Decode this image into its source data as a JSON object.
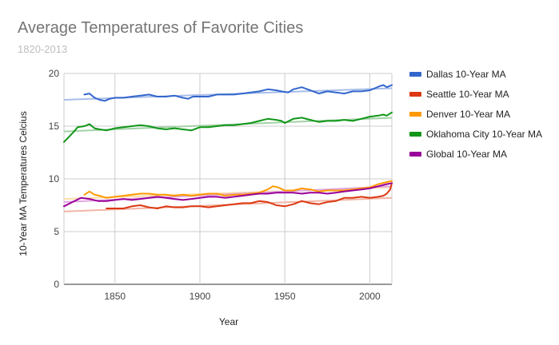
{
  "chart_data": {
    "type": "line",
    "title": "Average Temperatures of Favorite Cities",
    "subtitle": "1820-2013",
    "xlabel": "Year",
    "ylabel": "10-Year MA Temperatures Celcius",
    "xlim": [
      1820,
      2013
    ],
    "ylim": [
      0,
      20
    ],
    "xticks": [
      1850,
      1900,
      1950,
      2000
    ],
    "yticks": [
      0,
      5,
      10,
      15,
      20
    ],
    "grid": true,
    "legend_position": "right",
    "trendlines": true,
    "series": [
      {
        "name": "Dallas 10-Year MA",
        "color": "#3366cc",
        "trend_color": "#a7bde9",
        "x": [
          1832,
          1835,
          1838,
          1841,
          1844,
          1847,
          1850,
          1855,
          1860,
          1865,
          1870,
          1875,
          1880,
          1885,
          1890,
          1893,
          1896,
          1900,
          1905,
          1910,
          1915,
          1920,
          1925,
          1930,
          1935,
          1940,
          1945,
          1948,
          1952,
          1955,
          1960,
          1965,
          1970,
          1975,
          1980,
          1985,
          1990,
          1995,
          2000,
          2003,
          2006,
          2008,
          2010,
          2013
        ],
        "y": [
          18.0,
          18.1,
          17.7,
          17.5,
          17.4,
          17.6,
          17.7,
          17.7,
          17.8,
          17.9,
          18.0,
          17.8,
          17.8,
          17.9,
          17.7,
          17.6,
          17.8,
          17.8,
          17.8,
          18.0,
          18.0,
          18.0,
          18.1,
          18.2,
          18.3,
          18.5,
          18.4,
          18.3,
          18.2,
          18.5,
          18.7,
          18.4,
          18.1,
          18.3,
          18.2,
          18.1,
          18.3,
          18.3,
          18.4,
          18.6,
          18.8,
          18.9,
          18.7,
          18.9
        ],
        "trend": [
          17.5,
          18.6
        ]
      },
      {
        "name": "Seattle 10-Year MA",
        "color": "#dc3912",
        "trend_color": "#f2b5a6",
        "x": [
          1845,
          1850,
          1855,
          1860,
          1865,
          1870,
          1875,
          1880,
          1885,
          1890,
          1895,
          1900,
          1905,
          1910,
          1915,
          1920,
          1925,
          1930,
          1935,
          1940,
          1945,
          1950,
          1955,
          1960,
          1965,
          1970,
          1975,
          1980,
          1985,
          1990,
          1995,
          2000,
          2005,
          2008,
          2010,
          2012,
          2013
        ],
        "y": [
          7.2,
          7.2,
          7.2,
          7.4,
          7.5,
          7.3,
          7.2,
          7.4,
          7.3,
          7.3,
          7.4,
          7.4,
          7.3,
          7.4,
          7.5,
          7.6,
          7.7,
          7.7,
          7.9,
          7.8,
          7.5,
          7.4,
          7.6,
          7.9,
          7.7,
          7.6,
          7.8,
          7.9,
          8.2,
          8.2,
          8.3,
          8.2,
          8.3,
          8.4,
          8.6,
          9.0,
          9.6
        ],
        "trend": [
          6.9,
          8.2
        ]
      },
      {
        "name": "Denver 10-Year MA",
        "color": "#ff9900",
        "trend_color": "#ffdca8",
        "x": [
          1832,
          1835,
          1838,
          1841,
          1845,
          1850,
          1855,
          1860,
          1865,
          1870,
          1875,
          1880,
          1885,
          1890,
          1895,
          1900,
          1905,
          1910,
          1915,
          1920,
          1925,
          1930,
          1935,
          1940,
          1943,
          1946,
          1950,
          1955,
          1960,
          1965,
          1970,
          1975,
          1980,
          1985,
          1990,
          1995,
          2000,
          2005,
          2010,
          2013
        ],
        "y": [
          8.5,
          8.8,
          8.5,
          8.4,
          8.2,
          8.3,
          8.4,
          8.5,
          8.6,
          8.6,
          8.5,
          8.5,
          8.4,
          8.5,
          8.4,
          8.5,
          8.6,
          8.6,
          8.4,
          8.5,
          8.5,
          8.6,
          8.7,
          9.0,
          9.3,
          9.2,
          8.9,
          8.9,
          9.1,
          9.0,
          8.8,
          8.9,
          8.9,
          8.9,
          9.0,
          9.1,
          9.2,
          9.5,
          9.7,
          9.8
        ],
        "trend": [
          8.1,
          9.2
        ]
      },
      {
        "name": "Oklahoma City 10-Year MA",
        "color": "#109618",
        "trend_color": "#a3d1a6",
        "x": [
          1820,
          1823,
          1826,
          1828,
          1832,
          1835,
          1838,
          1841,
          1845,
          1850,
          1855,
          1860,
          1865,
          1870,
          1875,
          1880,
          1885,
          1890,
          1895,
          1900,
          1905,
          1910,
          1915,
          1920,
          1925,
          1930,
          1935,
          1940,
          1945,
          1948,
          1950,
          1955,
          1960,
          1965,
          1970,
          1975,
          1980,
          1985,
          1990,
          1995,
          2000,
          2005,
          2008,
          2010,
          2013
        ],
        "y": [
          13.5,
          14.0,
          14.5,
          14.9,
          15.0,
          15.2,
          14.8,
          14.7,
          14.6,
          14.8,
          14.9,
          15.0,
          15.1,
          15.0,
          14.8,
          14.7,
          14.8,
          14.7,
          14.6,
          14.9,
          14.9,
          15.0,
          15.1,
          15.1,
          15.2,
          15.3,
          15.5,
          15.7,
          15.6,
          15.5,
          15.3,
          15.7,
          15.8,
          15.6,
          15.4,
          15.5,
          15.5,
          15.6,
          15.5,
          15.7,
          15.9,
          16.0,
          16.1,
          16.0,
          16.3
        ],
        "trend": [
          14.5,
          15.8
        ]
      },
      {
        "name": "Global 10-Year MA",
        "color": "#990099",
        "trend_color": "#e0a8e0",
        "x": [
          1820,
          1825,
          1830,
          1835,
          1840,
          1845,
          1850,
          1855,
          1860,
          1865,
          1870,
          1875,
          1880,
          1885,
          1890,
          1895,
          1900,
          1905,
          1910,
          1915,
          1920,
          1925,
          1930,
          1935,
          1940,
          1945,
          1950,
          1955,
          1960,
          1965,
          1970,
          1975,
          1980,
          1985,
          1990,
          1995,
          2000,
          2005,
          2010,
          2013
        ],
        "y": [
          7.4,
          7.8,
          8.2,
          8.1,
          7.9,
          7.9,
          8.0,
          8.1,
          8.0,
          8.1,
          8.2,
          8.3,
          8.2,
          8.1,
          8.0,
          8.1,
          8.2,
          8.3,
          8.3,
          8.2,
          8.3,
          8.4,
          8.5,
          8.6,
          8.6,
          8.7,
          8.7,
          8.7,
          8.6,
          8.7,
          8.7,
          8.6,
          8.7,
          8.8,
          8.9,
          9.0,
          9.1,
          9.3,
          9.5,
          9.6
        ],
        "trend": [
          7.8,
          9.3
        ]
      }
    ]
  }
}
